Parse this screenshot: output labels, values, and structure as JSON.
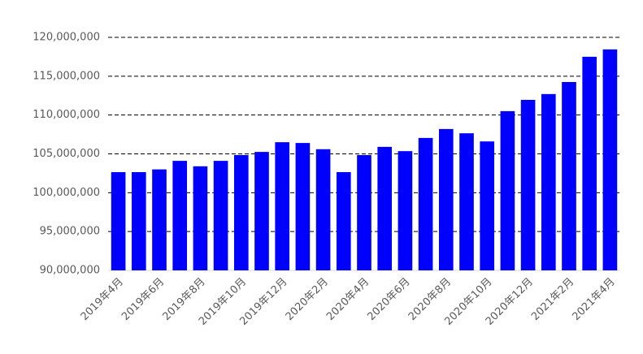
{
  "chart_data": {
    "type": "bar",
    "categories": [
      "2019年4月",
      null,
      "2019年6月",
      null,
      "2019年8月",
      null,
      "2019年10月",
      null,
      "2019年12月",
      null,
      "2020年2月",
      null,
      "2020年4月",
      null,
      "2020年6月",
      null,
      "2020年8月",
      null,
      "2020年10月",
      null,
      "2020年12月",
      null,
      "2021年2月",
      null,
      "2021年4月"
    ],
    "values": [
      102650000,
      102650000,
      103000000,
      104100000,
      103400000,
      104100000,
      104850000,
      105250000,
      106500000,
      106400000,
      105600000,
      102650000,
      104850000,
      105900000,
      105350000,
      107050000,
      108200000,
      107650000,
      106600000,
      110500000,
      111950000,
      112700000,
      114250000,
      117500000,
      118450000
    ],
    "color": "#0000ff",
    "ylim": [
      90000000,
      120000000
    ],
    "yticks": [
      {
        "value": 90000000,
        "label": "90,000,000"
      },
      {
        "value": 95000000,
        "label": "95,000,000"
      },
      {
        "value": 100000000,
        "label": "100,000,000"
      },
      {
        "value": 105000000,
        "label": "105,000,000"
      },
      {
        "value": 110000000,
        "label": "110,000,000"
      },
      {
        "value": 115000000,
        "label": "115,000,000"
      },
      {
        "value": 120000000,
        "label": "120,000,000"
      }
    ],
    "grid": true
  }
}
